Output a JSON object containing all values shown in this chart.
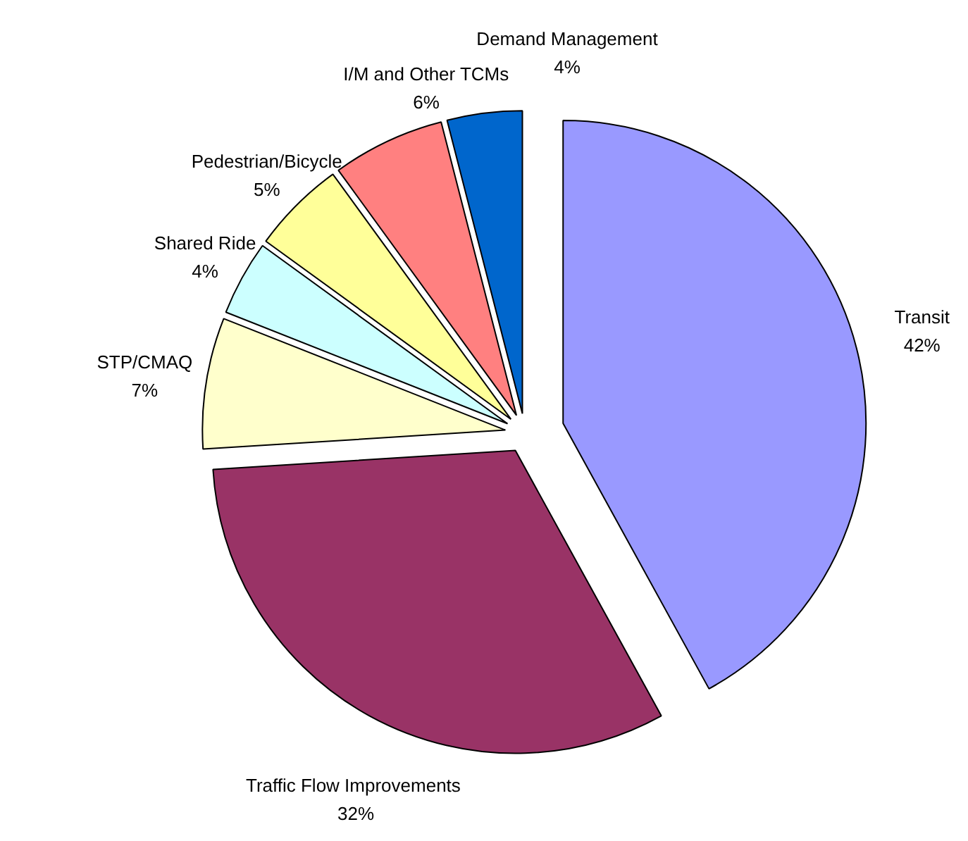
{
  "chart_data": {
    "type": "pie",
    "categories": [
      "Transit",
      "Traffic Flow  Improvements",
      "STP/CMAQ",
      "Shared Ride",
      "Pedestrian/Bicycle",
      "I/M and Other TCMs",
      "Demand Management"
    ],
    "values": [
      42,
      32,
      7,
      4,
      5,
      6,
      4
    ],
    "value_labels": [
      "42%",
      "32%",
      "7%",
      "4%",
      "5%",
      "6%",
      "4%"
    ],
    "colors": [
      "#9999ff",
      "#993366",
      "#ffffcc",
      "#ccffff",
      "#ffff99",
      "#ff8080",
      "#0066cc"
    ],
    "legend": false
  }
}
